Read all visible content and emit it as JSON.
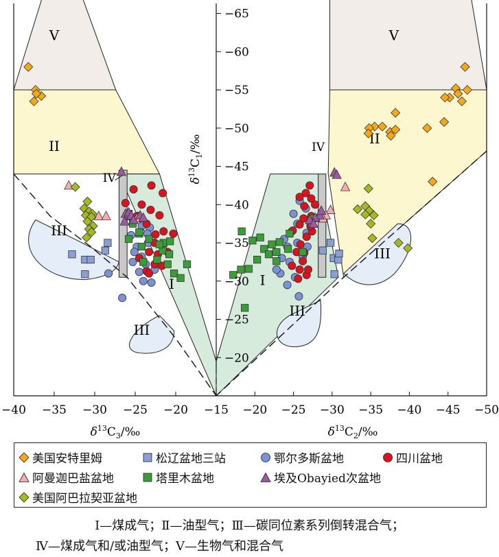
{
  "chart_data": {
    "type": "scatter",
    "subtitle": "",
    "left_panel": {
      "xlabel_prefix": "δ",
      "xlabel_sup": "13",
      "xlabel_main": "C",
      "xlabel_sub": "3",
      "xlabel_unit": "/‰",
      "xlim": [
        -40,
        -15
      ],
      "xticks": [
        -40,
        -35,
        -30,
        -25,
        -20,
        -15
      ],
      "region_labels": [
        "V",
        "II",
        "IV",
        "III",
        "III",
        "I"
      ]
    },
    "right_panel": {
      "xlabel_prefix": "δ",
      "xlabel_sup": "13",
      "xlabel_main": "C",
      "xlabel_sub": "2",
      "xlabel_unit": "/‰",
      "xlim": [
        -15,
        -50
      ],
      "xticks": [
        -20,
        -25,
        -30,
        -35,
        -40,
        -45,
        -50
      ],
      "region_labels": [
        "V",
        "II",
        "IV",
        "III",
        "III",
        "I"
      ]
    },
    "y_axis": {
      "ylabel_prefix": "δ",
      "ylabel_sup": "13",
      "ylabel_main": "C",
      "ylabel_sub": "1",
      "ylabel_unit": "/‰",
      "ylim": [
        -15,
        -67
      ],
      "yticks": [
        -20,
        -25,
        -30,
        -35,
        -40,
        -45,
        -50,
        -55,
        -60,
        -65
      ]
    },
    "series": [
      {
        "name": "美国安特里姆",
        "marker": "diamond",
        "color": "#f4a91c",
        "left": [
          [
            -38.2,
            -58
          ],
          [
            -37.3,
            -55
          ],
          [
            -37.5,
            -53.5
          ],
          [
            -36.6,
            -54.2
          ],
          [
            -37.2,
            -54.5
          ]
        ],
        "right": [
          [
            -47.2,
            -58
          ],
          [
            -46,
            -55.2
          ],
          [
            -47.5,
            -55
          ],
          [
            -45.2,
            -54
          ],
          [
            -46.3,
            -54.5
          ],
          [
            -44.6,
            -54
          ],
          [
            -46.8,
            -53.5
          ],
          [
            -38.2,
            -52
          ],
          [
            -35.5,
            -50.2
          ],
          [
            -34.8,
            -50
          ],
          [
            -36.5,
            -50.2
          ],
          [
            -37.5,
            -49.5
          ],
          [
            -38.2,
            -49.8
          ],
          [
            -37.6,
            -49
          ],
          [
            -34.7,
            -49.3
          ],
          [
            -42.3,
            -50
          ],
          [
            -44.5,
            -50.8
          ],
          [
            -43,
            -43
          ]
        ]
      },
      {
        "name": "松辽盆地三站",
        "marker": "square",
        "color": "#8a9fd4",
        "left": [
          [
            -32.8,
            -33.5
          ],
          [
            -31.2,
            -32.8
          ],
          [
            -30.5,
            -32.8
          ],
          [
            -31.2,
            -30.9
          ],
          [
            -28.4,
            -35
          ],
          [
            -28.7,
            -34
          ]
        ],
        "right": [
          [
            -28.8,
            -34
          ],
          [
            -29.8,
            -35
          ],
          [
            -30.2,
            -33
          ],
          [
            -30.8,
            -32.8
          ],
          [
            -30.9,
            -33.6
          ],
          [
            -30.3,
            -30.9
          ]
        ]
      },
      {
        "name": "鄂尔多斯盆地",
        "marker": "circle",
        "color": "#7b93d6",
        "left": [
          [
            -26.6,
            -27.8
          ],
          [
            -25.5,
            -36
          ],
          [
            -24.8,
            -34.5
          ],
          [
            -24.2,
            -33.2
          ],
          [
            -25.3,
            -32.5
          ],
          [
            -24.5,
            -31.2
          ],
          [
            -24,
            -30
          ],
          [
            -23,
            -29.8
          ],
          [
            -25.8,
            -38.5
          ],
          [
            -28.3,
            -31
          ],
          [
            -23.4,
            -35
          ],
          [
            -24.6,
            -38.5
          ],
          [
            -23.2,
            -37
          ],
          [
            -25.1,
            -33.8
          ],
          [
            -23.7,
            -32.2
          ],
          [
            -22.6,
            -31.5
          ],
          [
            -23.5,
            -36.2
          ],
          [
            -24.2,
            -37.2
          ]
        ],
        "right": [
          [
            -24.8,
            -36.5
          ],
          [
            -25.5,
            -37.5
          ],
          [
            -24.2,
            -34.5
          ],
          [
            -23.5,
            -33
          ],
          [
            -24.5,
            -32.5
          ],
          [
            -23.3,
            -31
          ],
          [
            -24.2,
            -29.5
          ],
          [
            -25.7,
            -28
          ],
          [
            -25.8,
            -40.5
          ],
          [
            -26.6,
            -39.5
          ],
          [
            -25.5,
            -35
          ],
          [
            -26.7,
            -36.3
          ],
          [
            -22.8,
            -31.5
          ],
          [
            -25,
            -38.8
          ],
          [
            -26.2,
            -33.2
          ],
          [
            -23.8,
            -35.5
          ],
          [
            -25.2,
            -30.5
          ],
          [
            -26.8,
            -34.5
          ]
        ]
      },
      {
        "name": "四川盆地",
        "marker": "circle",
        "color": "#d9141e",
        "left": [
          [
            -25.2,
            -42
          ],
          [
            -23,
            -42.5
          ],
          [
            -21.6,
            -41.5
          ],
          [
            -24.8,
            -38.5
          ],
          [
            -26.2,
            -40.2
          ],
          [
            -24.2,
            -40
          ],
          [
            -23.1,
            -39.3
          ],
          [
            -22,
            -38.6
          ],
          [
            -23.6,
            -37.5
          ],
          [
            -21.5,
            -36.5
          ],
          [
            -22.6,
            -35
          ],
          [
            -21.7,
            -34.7
          ],
          [
            -22.2,
            -33.5
          ],
          [
            -23.3,
            -33.8
          ],
          [
            -22.6,
            -32.2
          ],
          [
            -21.7,
            -32
          ],
          [
            -23.6,
            -31.3
          ],
          [
            -20.3,
            -36.2
          ],
          [
            -23.3,
            -31
          ],
          [
            -24.5,
            -33
          ],
          [
            -22.5,
            -36.1
          ],
          [
            -21,
            -33.8
          ]
        ],
        "right": [
          [
            -27.1,
            -42.5
          ],
          [
            -26.6,
            -41.5
          ],
          [
            -27.3,
            -40.8
          ],
          [
            -25.8,
            -41
          ],
          [
            -26.4,
            -39.8
          ],
          [
            -27.8,
            -40
          ],
          [
            -27.3,
            -38.5
          ],
          [
            -26.3,
            -38.2
          ],
          [
            -25.8,
            -37.4
          ],
          [
            -24.9,
            -36.6
          ],
          [
            -26.7,
            -35.8
          ],
          [
            -25.9,
            -34.8
          ],
          [
            -26.4,
            -33.7
          ],
          [
            -25.4,
            -33.8
          ],
          [
            -26.2,
            -32.6
          ],
          [
            -24.8,
            -32
          ],
          [
            -25.8,
            -31.5
          ],
          [
            -26.7,
            -30.8
          ],
          [
            -25.6,
            -30.3
          ],
          [
            -26.9,
            -31.5
          ],
          [
            -27.4,
            -36.5
          ],
          [
            -27.2,
            -37.2
          ]
        ]
      },
      {
        "name": "阿曼迦巴盐盆地",
        "marker": "triangle",
        "color": "#f7adad",
        "left": [
          [
            -33.2,
            -42.5
          ],
          [
            -29.5,
            -38.5
          ],
          [
            -28.6,
            -38.5
          ],
          [
            -24.8,
            -38.2
          ]
        ],
        "right": [
          [
            -31.7,
            -42.3
          ],
          [
            -29.8,
            -39.3
          ],
          [
            -29.2,
            -38.6
          ],
          [
            -28.8,
            -38.2
          ]
        ]
      },
      {
        "name": "塔里木盆地",
        "marker": "square",
        "color": "#3a9d37",
        "left": [
          [
            -25.8,
            -38.8
          ],
          [
            -25.3,
            -37.5
          ],
          [
            -24.5,
            -36.2
          ],
          [
            -25.8,
            -35.5
          ],
          [
            -24.2,
            -34.5
          ],
          [
            -23.3,
            -35.5
          ],
          [
            -21.5,
            -35
          ],
          [
            -21.6,
            -34
          ],
          [
            -20.8,
            -33.5
          ],
          [
            -22.3,
            -32.8
          ],
          [
            -21,
            -32.2
          ],
          [
            -20.2,
            -31
          ],
          [
            -18.6,
            -32.2
          ],
          [
            -19.4,
            -30.4
          ],
          [
            -24,
            -32.5
          ],
          [
            -24.5,
            -36.4
          ],
          [
            -22,
            -34.8
          ],
          [
            -20.7,
            -35.2
          ]
        ],
        "right": [
          [
            -18.3,
            -36.5
          ],
          [
            -19.7,
            -35.3
          ],
          [
            -20.7,
            -35.7
          ],
          [
            -21.2,
            -34.2
          ],
          [
            -22.2,
            -34.8
          ],
          [
            -21.8,
            -33.5
          ],
          [
            -20.3,
            -32.8
          ],
          [
            -22.8,
            -33.8
          ],
          [
            -23.2,
            -35.1
          ],
          [
            -24.5,
            -36.2
          ],
          [
            -22.8,
            -32.6
          ],
          [
            -19.2,
            -31.6
          ],
          [
            -18.2,
            -31.5
          ],
          [
            -17.2,
            -30.8
          ],
          [
            -18.7,
            -26.5
          ],
          [
            -26.2,
            -33.8
          ],
          [
            -27.6,
            -38.2
          ],
          [
            -24.3,
            -34.2
          ]
        ]
      },
      {
        "name": "埃及Obayied次盆地",
        "marker": "triangle",
        "color": "#9b5aa0",
        "left": [
          [
            -26.7,
            -44.3
          ],
          [
            -26.2,
            -38.8
          ],
          [
            -25.8,
            -39
          ],
          [
            -26.3,
            -37.8
          ],
          [
            -25.5,
            -38.6
          ],
          [
            -24.4,
            -38.6
          ],
          [
            -24,
            -38.3
          ],
          [
            -25.2,
            -38
          ]
        ],
        "right": [
          [
            -30.3,
            -44.2
          ],
          [
            -30.6,
            -43.9
          ],
          [
            -28.4,
            -38.6
          ],
          [
            -27.8,
            -38.3
          ],
          [
            -27.4,
            -37.6
          ],
          [
            -27.1,
            -38
          ],
          [
            -28.6,
            -39.2
          ],
          [
            -27.6,
            -37.5
          ]
        ]
      },
      {
        "name": "美国阿巴拉契亚盆地",
        "marker": "diamond",
        "color": "#a5b923",
        "left": [
          [
            -32.4,
            -42.3
          ],
          [
            -30.9,
            -40.4
          ],
          [
            -31.3,
            -39.5
          ],
          [
            -30.7,
            -39.1
          ],
          [
            -30.3,
            -38.8
          ],
          [
            -31.1,
            -38.6
          ],
          [
            -30.4,
            -38.4
          ],
          [
            -30.9,
            -37.8
          ],
          [
            -30.2,
            -37.2
          ],
          [
            -30.7,
            -36.8
          ],
          [
            -31,
            -35.7
          ],
          [
            -30.4,
            -36.4
          ]
        ],
        "right": [
          [
            -34.7,
            -42.1
          ],
          [
            -33.3,
            -39.4
          ],
          [
            -34.3,
            -39.8
          ],
          [
            -34.8,
            -39.2
          ],
          [
            -34.3,
            -38.7
          ],
          [
            -35.4,
            -38.6
          ],
          [
            -35,
            -37.5
          ],
          [
            -35.2,
            -35.6
          ],
          [
            -38.6,
            -35
          ],
          [
            -39.8,
            -34.3
          ]
        ]
      }
    ],
    "legend_placement": "bottom"
  },
  "captions": {
    "line1": "Ⅰ—煤成气；Ⅱ—油型气；Ⅲ—碳同位素系列倒转混合气；",
    "line2": "Ⅳ—煤成气和/或油型气；Ⅴ—生物气和混合气"
  },
  "colors": {
    "region_V": "#f2ede8",
    "region_II": "#fdf7cf",
    "region_I": "#d6ebdc",
    "region_III": "#e5eef8",
    "region_IV": "#c8c8c8"
  }
}
